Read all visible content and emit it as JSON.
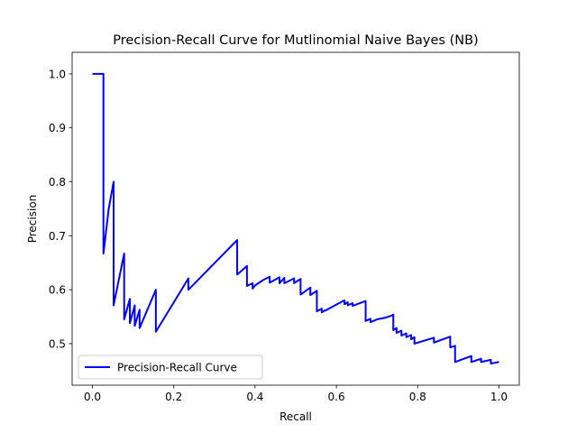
{
  "chart_data": {
    "type": "line",
    "title": "Precision-Recall Curve for Mutlinomial Naive Bayes (NB)",
    "xlabel": "Recall",
    "ylabel": "Precision",
    "xlim": [
      -0.05,
      1.05
    ],
    "ylim": [
      0.423,
      1.04
    ],
    "x_ticks": [
      0.0,
      0.2,
      0.4,
      0.6,
      0.8,
      1.0
    ],
    "x_tick_labels": [
      "0.0",
      "0.2",
      "0.4",
      "0.6",
      "0.8",
      "1.0"
    ],
    "y_ticks": [
      0.5,
      0.6,
      0.7,
      0.8,
      0.9,
      1.0
    ],
    "y_tick_labels": [
      "0.5",
      "0.6",
      "0.7",
      "0.8",
      "0.9",
      "1.0"
    ],
    "grid": false,
    "legend_position": "lower-left",
    "line_color": "#0000ff",
    "series": [
      {
        "name": "Precision-Recall Curve",
        "x": [
          0.0,
          0.027,
          0.027,
          0.04,
          0.052,
          0.052,
          0.078,
          0.078,
          0.092,
          0.092,
          0.104,
          0.104,
          0.116,
          0.116,
          0.156,
          0.156,
          0.236,
          0.236,
          0.356,
          0.356,
          0.38,
          0.38,
          0.394,
          0.394,
          0.4,
          0.42,
          0.436,
          0.436,
          0.46,
          0.46,
          0.472,
          0.472,
          0.496,
          0.496,
          0.512,
          0.512,
          0.536,
          0.536,
          0.552,
          0.552,
          0.564,
          0.564,
          0.572,
          0.572,
          0.616,
          0.62,
          0.62,
          0.628,
          0.628,
          0.64,
          0.64,
          0.672,
          0.672,
          0.684,
          0.684,
          0.7,
          0.72,
          0.736,
          0.74,
          0.74,
          0.748,
          0.748,
          0.76,
          0.76,
          0.772,
          0.772,
          0.784,
          0.784,
          0.792,
          0.792,
          0.84,
          0.84,
          0.88,
          0.88,
          0.892,
          0.892,
          0.932,
          0.932,
          0.956,
          0.956,
          0.98,
          0.98,
          1.0
        ],
        "y": [
          1.0,
          1.0,
          0.667,
          0.75,
          0.8,
          0.571,
          0.667,
          0.545,
          0.583,
          0.538,
          0.571,
          0.533,
          0.563,
          0.529,
          0.6,
          0.522,
          0.621,
          0.6,
          0.692,
          0.628,
          0.644,
          0.607,
          0.612,
          0.602,
          0.608,
          0.618,
          0.624,
          0.613,
          0.623,
          0.612,
          0.622,
          0.612,
          0.621,
          0.612,
          0.62,
          0.591,
          0.604,
          0.59,
          0.598,
          0.56,
          0.565,
          0.558,
          0.562,
          0.561,
          0.579,
          0.58,
          0.573,
          0.577,
          0.571,
          0.575,
          0.57,
          0.579,
          0.542,
          0.546,
          0.54,
          0.545,
          0.548,
          0.552,
          0.554,
          0.525,
          0.529,
          0.52,
          0.524,
          0.515,
          0.519,
          0.512,
          0.516,
          0.508,
          0.512,
          0.5,
          0.511,
          0.502,
          0.513,
          0.493,
          0.496,
          0.466,
          0.477,
          0.466,
          0.472,
          0.466,
          0.47,
          0.463,
          0.466
        ]
      }
    ]
  }
}
